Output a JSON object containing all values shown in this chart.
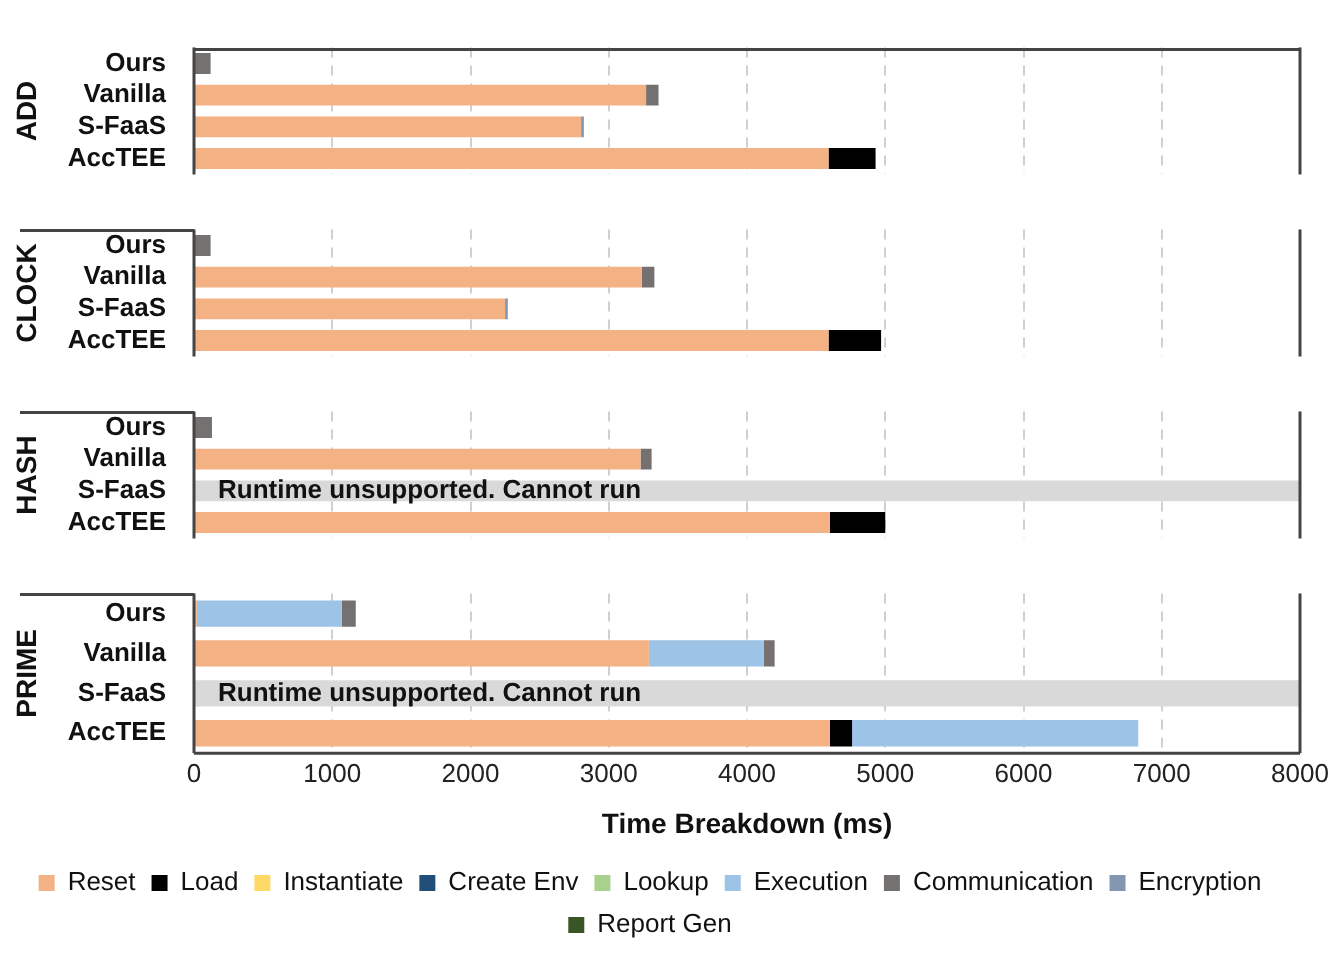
{
  "chart_data": [
    {
      "type": "bar",
      "title": "ADD",
      "orientation": "horizontal",
      "stacked": true,
      "categories": [
        "Ours",
        "Vanilla",
        "S-FaaS",
        "AccTEE"
      ],
      "xlim": [
        0,
        8000
      ],
      "xticks": [
        0,
        1000,
        2000,
        3000,
        4000,
        5000,
        6000,
        7000,
        8000
      ],
      "grid": "x",
      "legend": false,
      "tick_labels": "y",
      "series": [
        {
          "color": "#f4b183",
          "values": [
            0,
            3270,
            2800,
            4590
          ]
        },
        {
          "color": "#000000",
          "values": [
            0,
            0,
            0,
            340
          ]
        },
        {
          "color": "#ffd966",
          "values": [
            0,
            0,
            0,
            0
          ]
        },
        {
          "color": "#1f4e79",
          "values": [
            0,
            0,
            0,
            0
          ]
        },
        {
          "color": "#a9d18e",
          "values": [
            0,
            0,
            0,
            0
          ]
        },
        {
          "color": "#9dc3e6",
          "values": [
            0,
            0,
            0,
            0
          ]
        },
        {
          "color": "#767171",
          "values": [
            120,
            90,
            0,
            0
          ]
        },
        {
          "color": "#8497b0",
          "values": [
            0,
            0,
            20,
            0
          ]
        },
        {
          "color": "#375623",
          "values": [
            0,
            0,
            0,
            0
          ]
        }
      ]
    },
    {
      "type": "bar",
      "title": "CLOCK",
      "orientation": "horizontal",
      "stacked": true,
      "categories": [
        "Ours",
        "Vanilla",
        "S-FaaS",
        "AccTEE"
      ],
      "xlim": [
        0,
        8000
      ],
      "xticks": [
        0,
        1000,
        2000,
        3000,
        4000,
        5000,
        6000,
        7000,
        8000
      ],
      "grid": "x",
      "legend": false,
      "tick_labels": "y",
      "series": [
        {
          "color": "#f4b183",
          "values": [
            0,
            3240,
            2250,
            4590
          ]
        },
        {
          "color": "#000000",
          "values": [
            0,
            0,
            0,
            380
          ]
        },
        {
          "color": "#ffd966",
          "values": [
            0,
            0,
            0,
            0
          ]
        },
        {
          "color": "#1f4e79",
          "values": [
            0,
            0,
            0,
            0
          ]
        },
        {
          "color": "#a9d18e",
          "values": [
            0,
            0,
            0,
            0
          ]
        },
        {
          "color": "#9dc3e6",
          "values": [
            0,
            0,
            0,
            0
          ]
        },
        {
          "color": "#767171",
          "values": [
            120,
            90,
            0,
            0
          ]
        },
        {
          "color": "#8497b0",
          "values": [
            0,
            0,
            20,
            0
          ]
        },
        {
          "color": "#375623",
          "values": [
            0,
            0,
            0,
            0
          ]
        }
      ]
    },
    {
      "type": "bar",
      "title": "HASH",
      "orientation": "horizontal",
      "stacked": true,
      "categories": [
        "Ours",
        "Vanilla",
        "S-FaaS",
        "AccTEE"
      ],
      "xlim": [
        0,
        8000
      ],
      "xticks": [
        0,
        1000,
        2000,
        3000,
        4000,
        5000,
        6000,
        7000,
        8000
      ],
      "grid": "x",
      "legend": false,
      "tick_labels": "y",
      "bands": [
        {
          "axis": "y",
          "from": "S-FaaS",
          "to": "S-FaaS",
          "label": "Runtime unsupported. Cannot run",
          "color": "#d9d9d9"
        }
      ],
      "series": [
        {
          "color": "#f4b183",
          "values": [
            0,
            3230,
            null,
            4600
          ]
        },
        {
          "color": "#000000",
          "values": [
            0,
            0,
            null,
            400
          ]
        },
        {
          "color": "#ffd966",
          "values": [
            0,
            0,
            null,
            0
          ]
        },
        {
          "color": "#1f4e79",
          "values": [
            0,
            0,
            null,
            0
          ]
        },
        {
          "color": "#a9d18e",
          "values": [
            0,
            0,
            null,
            0
          ]
        },
        {
          "color": "#9dc3e6",
          "values": [
            0,
            0,
            null,
            0
          ]
        },
        {
          "color": "#767171",
          "values": [
            130,
            80,
            null,
            0
          ]
        },
        {
          "color": "#8497b0",
          "values": [
            0,
            0,
            null,
            0
          ]
        },
        {
          "color": "#375623",
          "values": [
            0,
            0,
            null,
            0
          ]
        }
      ]
    },
    {
      "type": "bar",
      "title": "PRIME",
      "xlabel": "Time Breakdown (ms)",
      "orientation": "horizontal",
      "stacked": true,
      "categories": [
        "Ours",
        "Vanilla",
        "S-FaaS",
        "AccTEE"
      ],
      "xlim": [
        0,
        8000
      ],
      "xticks": [
        0,
        1000,
        2000,
        3000,
        4000,
        5000,
        6000,
        7000,
        8000
      ],
      "grid": "x",
      "legend": "bottom",
      "bands": [
        {
          "axis": "y",
          "from": "S-FaaS",
          "to": "S-FaaS",
          "label": "Runtime unsupported. Cannot run",
          "color": "#d9d9d9"
        }
      ],
      "series": [
        {
          "name": "Reset",
          "color": "#f4b183",
          "values": [
            20,
            3290,
            null,
            4600
          ]
        },
        {
          "name": "Load",
          "color": "#000000",
          "values": [
            0,
            0,
            null,
            160
          ]
        },
        {
          "name": "Instantiate",
          "color": "#ffd966",
          "values": [
            0,
            0,
            null,
            0
          ]
        },
        {
          "name": "Create Env",
          "color": "#1f4e79",
          "values": [
            0,
            0,
            null,
            0
          ]
        },
        {
          "name": "Lookup",
          "color": "#a9d18e",
          "values": [
            0,
            0,
            null,
            0
          ]
        },
        {
          "name": "Execution",
          "color": "#9dc3e6",
          "values": [
            1050,
            830,
            null,
            2070
          ]
        },
        {
          "name": "Communication",
          "color": "#767171",
          "values": [
            100,
            80,
            null,
            0
          ]
        },
        {
          "name": "Encryption",
          "color": "#8497b0",
          "values": [
            0,
            0,
            null,
            0
          ]
        },
        {
          "name": "Report Gen",
          "color": "#375623",
          "values": [
            0,
            0,
            null,
            0
          ]
        }
      ]
    }
  ]
}
